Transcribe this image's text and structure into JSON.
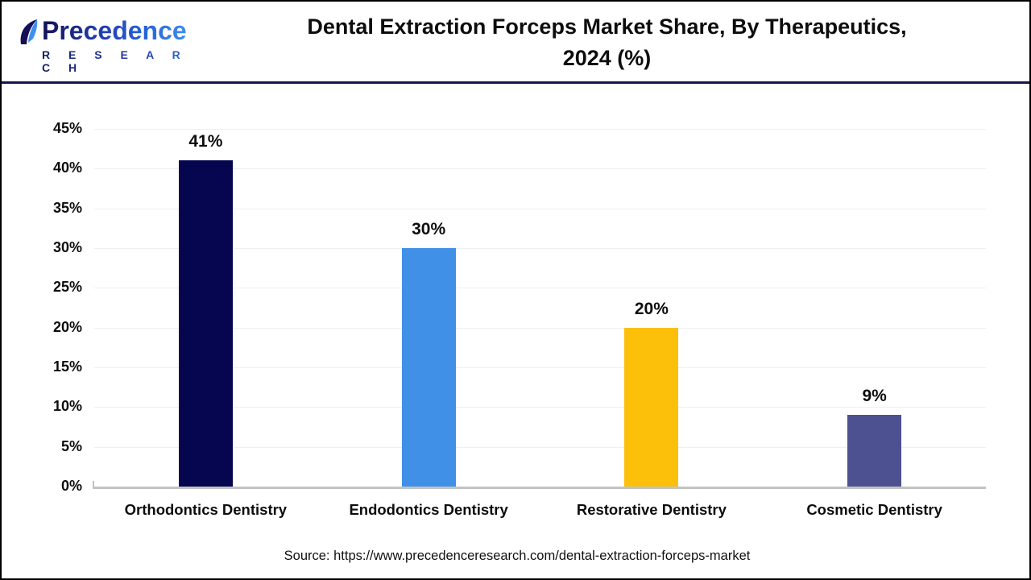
{
  "logo": {
    "brand_line1": "Precedence",
    "brand_line2": "R E S E A R C H",
    "color_dark": "#151056",
    "color_light": "#3F8FF2"
  },
  "header": {
    "title_line1": "Dental Extraction Forceps Market Share, By Therapeutics,",
    "title_line2": "2024 (%)",
    "divider_color": "#16164A"
  },
  "chart_data": {
    "type": "bar",
    "title": "Dental Extraction Forceps Market Share, By Therapeutics, 2024 (%)",
    "categories": [
      "Orthodontics Dentistry",
      "Endodontics Dentistry",
      "Restorative Dentistry",
      "Cosmetic Dentistry"
    ],
    "values": [
      41,
      30,
      20,
      9
    ],
    "value_labels": [
      "41%",
      "30%",
      "20%",
      "9%"
    ],
    "bar_colors": [
      "#050550",
      "#4190E8",
      "#FCC00A",
      "#4E5191"
    ],
    "xlabel": "",
    "ylabel": "",
    "ylim": [
      0,
      45
    ],
    "ytick_step": 5,
    "ytick_labels": [
      "0%",
      "5%",
      "10%",
      "15%",
      "20%",
      "25%",
      "30%",
      "35%",
      "40%",
      "45%"
    ],
    "grid": true,
    "legend": false,
    "gridline_color": "#efefef",
    "axis_color": "#c2c2c2"
  },
  "footer": {
    "source_text": "Source: https://www.precedenceresearch.com/dental-extraction-forceps-market"
  }
}
